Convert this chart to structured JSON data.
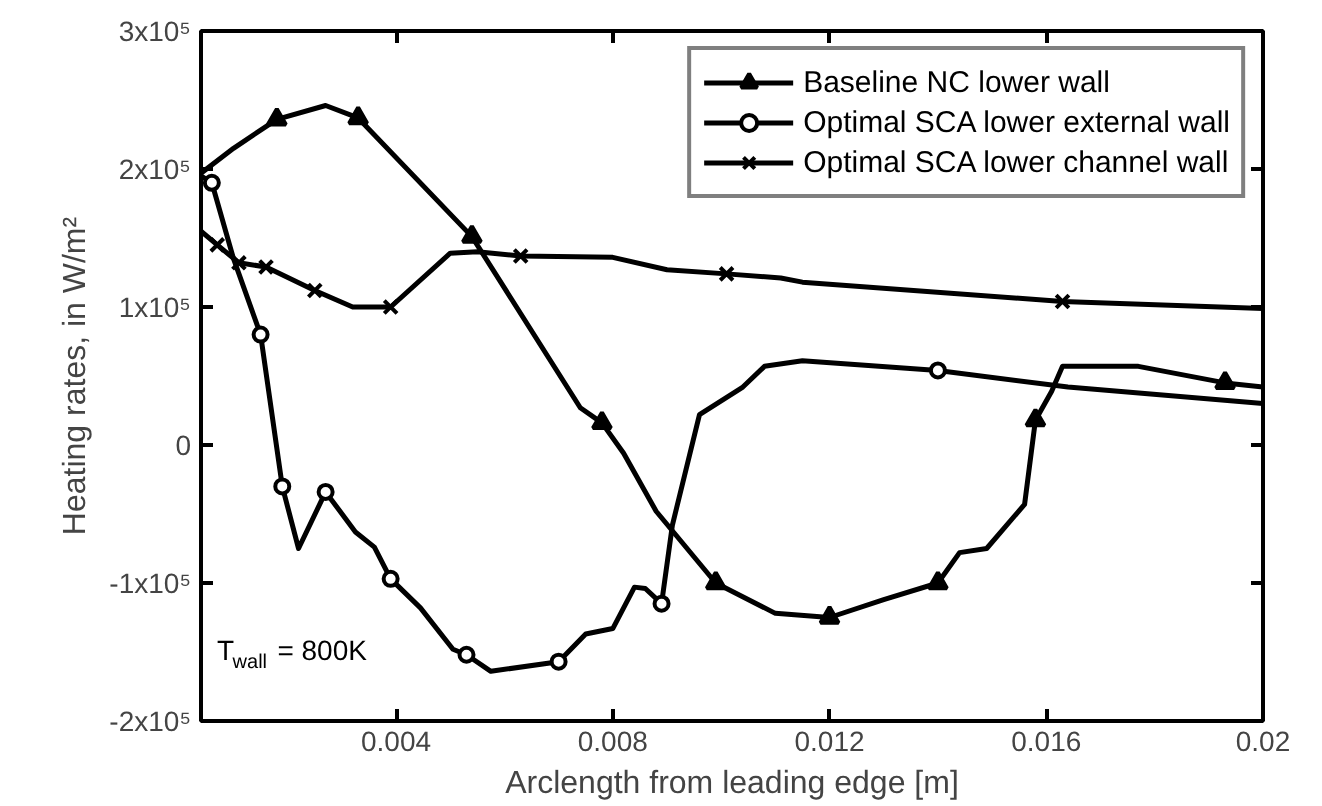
{
  "chart_data": {
    "type": "line",
    "xlabel": "Arclength from leading edge [m]",
    "ylabel": "Heating rates, in W/m²",
    "xlim": [
      0.0004,
      0.02
    ],
    "xticks": [
      0.004,
      0.008,
      0.012,
      0.016,
      0.02
    ],
    "ylim": [
      -200000,
      300000
    ],
    "yticks": [
      {
        "value": -200000,
        "label": "-2x10⁵"
      },
      {
        "value": -100000,
        "label": "-1x10⁵"
      },
      0,
      {
        "value": 100000,
        "label": "1x10⁵"
      },
      {
        "value": 200000,
        "label": "2x10⁵"
      },
      {
        "value": 300000,
        "label": "3x10⁵"
      }
    ],
    "grid": false,
    "legend": "top right",
    "line_style": "solid",
    "annotations": [
      "T$_{wall}$ = 800K"
    ],
    "series": [
      {
        "name": "Baseline NC lower wall",
        "color": "#000000",
        "x": [
          0.0004,
          0.001,
          0.0018,
          0.0027,
          0.0033,
          0.0054,
          0.0074,
          0.0078,
          0.0082,
          0.0088,
          0.0099,
          0.011,
          0.012,
          0.013,
          0.014,
          0.0144,
          0.0149,
          0.0156,
          0.0158,
          0.0161,
          0.0163,
          0.0177,
          0.0193,
          0.02
        ],
        "values": [
          197000,
          215000,
          236000,
          246000,
          237000,
          151000,
          27000,
          16000,
          -6000,
          -48000,
          -100000,
          -122000,
          -125000,
          -112000,
          -100000,
          -78000,
          -75000,
          -43000,
          18000,
          39000,
          57000,
          57000,
          45000,
          42000
        ]
      },
      {
        "type": "scatter",
        "color": "#000000",
        "marker": "triangle",
        "x": [
          0.0018,
          0.0033,
          0.0054,
          0.0078,
          0.0099,
          0.012,
          0.014,
          0.0158,
          0.0193
        ],
        "values": [
          236000,
          237000,
          151000,
          16000,
          -100000,
          -125000,
          -100000,
          18000,
          45000
        ]
      },
      {
        "name": "Optimal SCA lower external wall",
        "color": "#000000",
        "x": [
          0.0004,
          0.0006,
          0.001,
          0.0015,
          0.0019,
          0.0022,
          0.0027,
          0.00325,
          0.0036,
          0.0039,
          0.00445,
          0.00505,
          0.0053,
          0.00575,
          0.007,
          0.0075,
          0.008,
          0.0084,
          0.0086,
          0.0089,
          0.0091,
          0.0096,
          0.0104,
          0.0108,
          0.0115,
          0.014,
          0.0164,
          0.02
        ],
        "values": [
          195000,
          190000,
          135000,
          80000,
          -30000,
          -75000,
          -34000,
          -63000,
          -74000,
          -97000,
          -118000,
          -148000,
          -152000,
          -164000,
          -157000,
          -137000,
          -133000,
          -103000,
          -104000,
          -115000,
          -58000,
          22000,
          42000,
          57000,
          61000,
          54000,
          42000,
          30000
        ]
      },
      {
        "type": "scatter",
        "color": "#000000",
        "marker": "circle",
        "x": [
          0.0006,
          0.0015,
          0.0019,
          0.0027,
          0.0039,
          0.0053,
          0.007,
          0.0089,
          0.014
        ],
        "values": [
          190000,
          80000,
          -30000,
          -34000,
          -97000,
          -152000,
          -157000,
          -115000,
          54000
        ]
      },
      {
        "name": "Optimal SCA lower channel wall",
        "color": "#000000",
        "x": [
          0.0004,
          0.0007,
          0.0011,
          0.0016,
          0.0025,
          0.0032,
          0.0039,
          0.005,
          0.0055,
          0.0063,
          0.008,
          0.009,
          0.0101,
          0.0111,
          0.0115,
          0.0163,
          0.02
        ],
        "values": [
          155000,
          145000,
          132000,
          129000,
          112000,
          100000,
          100000,
          139000,
          140000,
          137000,
          136000,
          127000,
          124000,
          121000,
          118000,
          104000,
          99000
        ]
      },
      {
        "type": "scatter",
        "color": "#000000",
        "marker": "cross",
        "x": [
          0.0007,
          0.0011,
          0.0016,
          0.0025,
          0.0039,
          0.0063,
          0.0101,
          0.0163
        ],
        "values": [
          145000,
          132000,
          129000,
          112000,
          100000,
          137000,
          124000,
          104000
        ]
      }
    ]
  }
}
